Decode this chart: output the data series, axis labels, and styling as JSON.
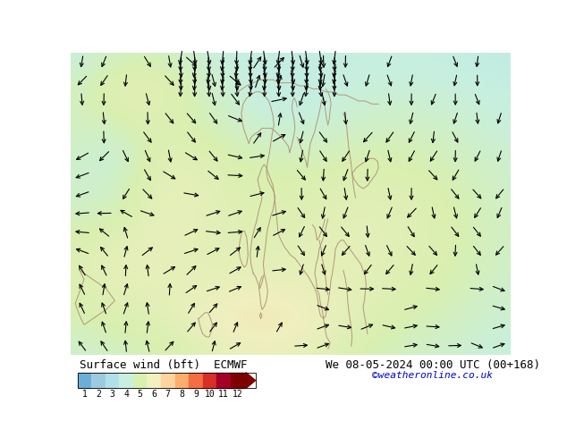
{
  "title_left": "Surface wind (bft)  ECMWF",
  "title_right": "We 08-05-2024 00:00 UTC (00+168)",
  "watermark": "©weatheronline.co.uk",
  "colorbar_labels": [
    "1",
    "2",
    "3",
    "4",
    "5",
    "6",
    "7",
    "8",
    "9",
    "10",
    "11",
    "12"
  ],
  "colorbar_colors": [
    "#6baed6",
    "#9ecae1",
    "#b0e0e8",
    "#c8f0e0",
    "#d8f0b0",
    "#f0f0c0",
    "#fdd49e",
    "#fdae6b",
    "#f46d43",
    "#d73027",
    "#a50026",
    "#7f0000"
  ],
  "bg_color": "#c8eaf8",
  "sea_color": "#aadcf0",
  "land_color": "#c8eaf8",
  "fig_width": 6.34,
  "fig_height": 4.9,
  "dpi": 100,
  "text_color": "#000000",
  "watermark_color": "#0000cc",
  "coast_color": "#b09878",
  "arrow_color": "#000000"
}
